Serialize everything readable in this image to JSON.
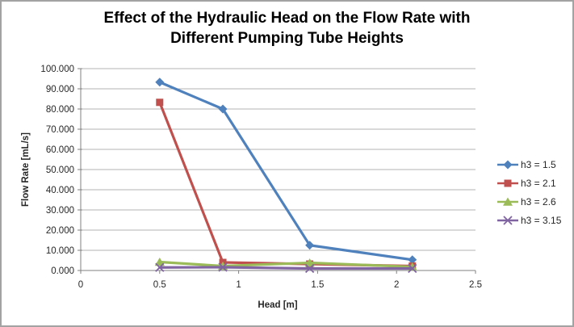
{
  "header": {
    "line1": "Effect of the Hydraulic Head on the Flow Rate with",
    "line2": "Different Pumping Tube Heights"
  },
  "chart_data": {
    "type": "line",
    "title": "Effect of the Hydraulic Head on the Flow Rate with Different Pumping Tube Heights",
    "xlabel": "Head [m]",
    "ylabel": "Flow Rate [mL/s]",
    "xlim": [
      0,
      2.5
    ],
    "ylim": [
      0,
      100
    ],
    "grid": "horizontal",
    "legend_position": "right",
    "x_tick_values": [
      0,
      0.5,
      1,
      1.5,
      2,
      2.5
    ],
    "x_tick_labels": [
      "0",
      "0.5",
      "1",
      "1.5",
      "2",
      "2.5"
    ],
    "y_tick_values": [
      0,
      10,
      20,
      30,
      40,
      50,
      60,
      70,
      80,
      90,
      100
    ],
    "y_tick_labels": [
      "0.000",
      "10.000",
      "20.000",
      "30.000",
      "40.000",
      "50.000",
      "60.000",
      "70.000",
      "80.000",
      "90.000",
      "100.000"
    ],
    "x": [
      0.5,
      0.9,
      1.45,
      2.1
    ],
    "series": [
      {
        "name": "h3 = 1.5",
        "color": "#4F81BD",
        "marker": "diamond",
        "values": [
          93.3,
          80.0,
          12.5,
          5.3
        ]
      },
      {
        "name": "h3 = 2.1",
        "color": "#C0504D",
        "marker": "square",
        "values": [
          83.3,
          4.0,
          3.2,
          2.2
        ]
      },
      {
        "name": "h3 = 2.6",
        "color": "#9BBB59",
        "marker": "triangle",
        "values": [
          4.2,
          2.2,
          3.8,
          1.8
        ]
      },
      {
        "name": "h3 = 3.15",
        "color": "#8064A2",
        "marker": "x-cross",
        "values": [
          1.5,
          1.6,
          1.0,
          1.0
        ]
      }
    ],
    "colors": {
      "gridline": "#b3b3b3",
      "axis": "#808080",
      "tick_text": "#262626",
      "border": "#a3a3a3",
      "background": "#ffffff"
    }
  }
}
